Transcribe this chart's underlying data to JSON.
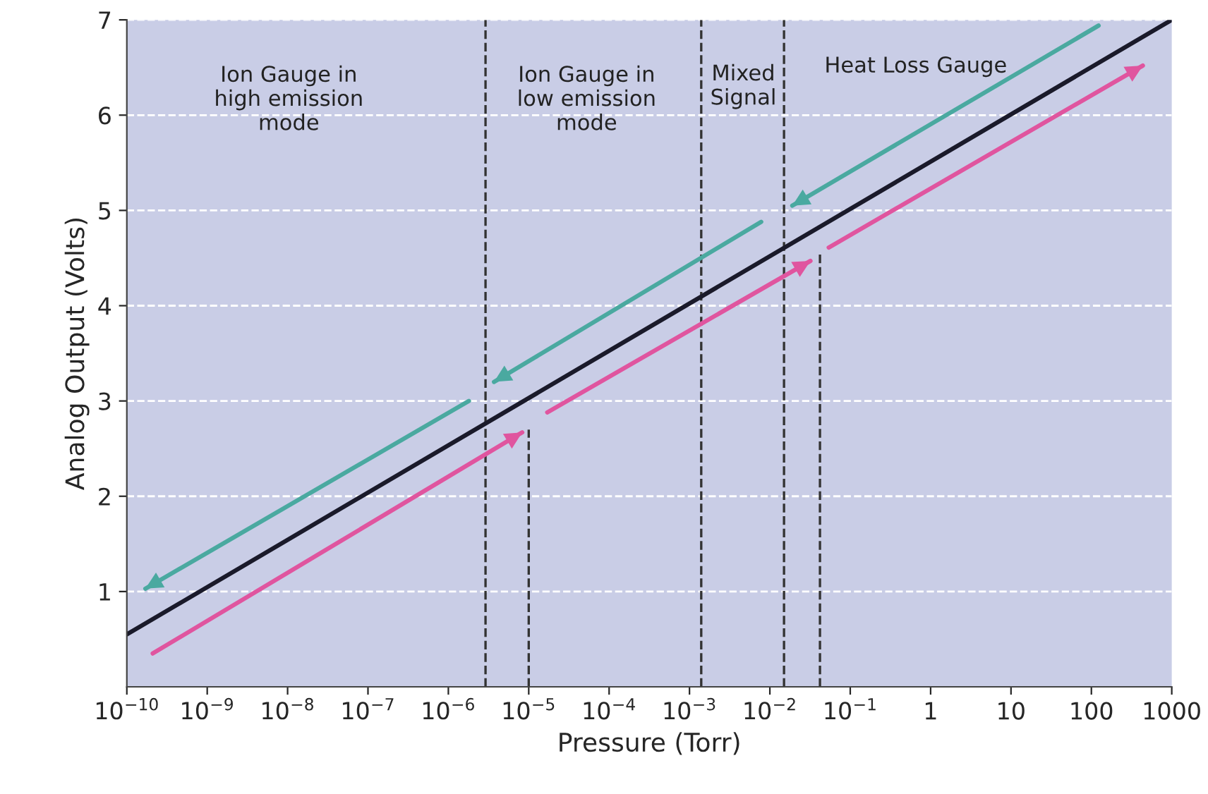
{
  "chart_data": {
    "type": "line",
    "xlabel": "Pressure (Torr)",
    "ylabel": "Analog Output (Volts)",
    "log": "x",
    "xlim": [
      1e-10,
      1000
    ],
    "ylim": [
      0,
      7
    ],
    "xticks": [
      {
        "value": 1e-10,
        "label": "10$^{−10}$"
      },
      {
        "value": 1e-09,
        "label": "10$^{−9}$"
      },
      {
        "value": 1e-08,
        "label": "10$^{−8}$"
      },
      {
        "value": 1e-07,
        "label": "10$^{−7}$"
      },
      {
        "value": 1e-06,
        "label": "10$^{−6}$"
      },
      {
        "value": 1e-05,
        "label": "10$^{−5}$"
      },
      {
        "value": 0.0001,
        "label": "10$^{−4}$"
      },
      {
        "value": 0.001,
        "label": "10$^{−3}$"
      },
      {
        "value": 0.01,
        "label": "10$^{−2}$"
      },
      {
        "value": 0.1,
        "label": "10$^{−1}$"
      },
      1,
      10,
      100,
      1000
    ],
    "yticks": [
      1,
      2,
      3,
      4,
      5,
      6,
      7
    ],
    "grid": "y",
    "legend": false,
    "series": [
      {
        "color": "#1a1a2a",
        "x": [
          1e-10,
          1000
        ],
        "values": [
          0.55,
          7.0
        ]
      },
      {
        "color": "#4aa9a0",
        "x": [
          123,
          0.019
        ],
        "values": [
          6.94,
          5.05
        ]
      },
      {
        "color": "#4aa9a0",
        "x": [
          0.0078,
          3.7e-06
        ],
        "values": [
          4.88,
          3.2
        ]
      },
      {
        "color": "#4aa9a0",
        "x": [
          1.8e-06,
          1.7e-10
        ],
        "values": [
          3.0,
          1.03
        ]
      },
      {
        "color": "#e0559f",
        "x": [
          2.1e-10,
          8.3e-06
        ],
        "values": [
          0.35,
          2.67
        ]
      },
      {
        "color": "#e0559f",
        "x": [
          1.7e-05,
          0.032
        ],
        "values": [
          2.88,
          4.47
        ]
      },
      {
        "color": "#e0559f",
        "x": [
          0.054,
          437
        ],
        "values": [
          4.61,
          6.52
        ]
      },
      {
        "color": "#333333",
        "line_style": "dashed",
        "x": [
          1e-05,
          1e-05
        ],
        "values": [
          0,
          2.7
        ]
      },
      {
        "color": "#333333",
        "line_style": "dashed",
        "x": [
          0.042,
          0.042
        ],
        "values": [
          0,
          4.55
        ]
      }
    ],
    "ref_lines": [
      {
        "axis": "x",
        "value": 2.9e-06,
        "color": "#333333",
        "line_style": "dashed"
      },
      {
        "axis": "x",
        "value": 0.0014,
        "color": "#333333",
        "line_style": "dashed"
      },
      {
        "axis": "x",
        "value": 0.015,
        "color": "#333333",
        "line_style": "dashed"
      }
    ],
    "annotations": [
      "Ion Gauge in\nhigh emission\nmode",
      "Ion Gauge in\nlow emission\nmode",
      "Mixed\nSignal",
      "Heat Loss Gauge"
    ]
  }
}
